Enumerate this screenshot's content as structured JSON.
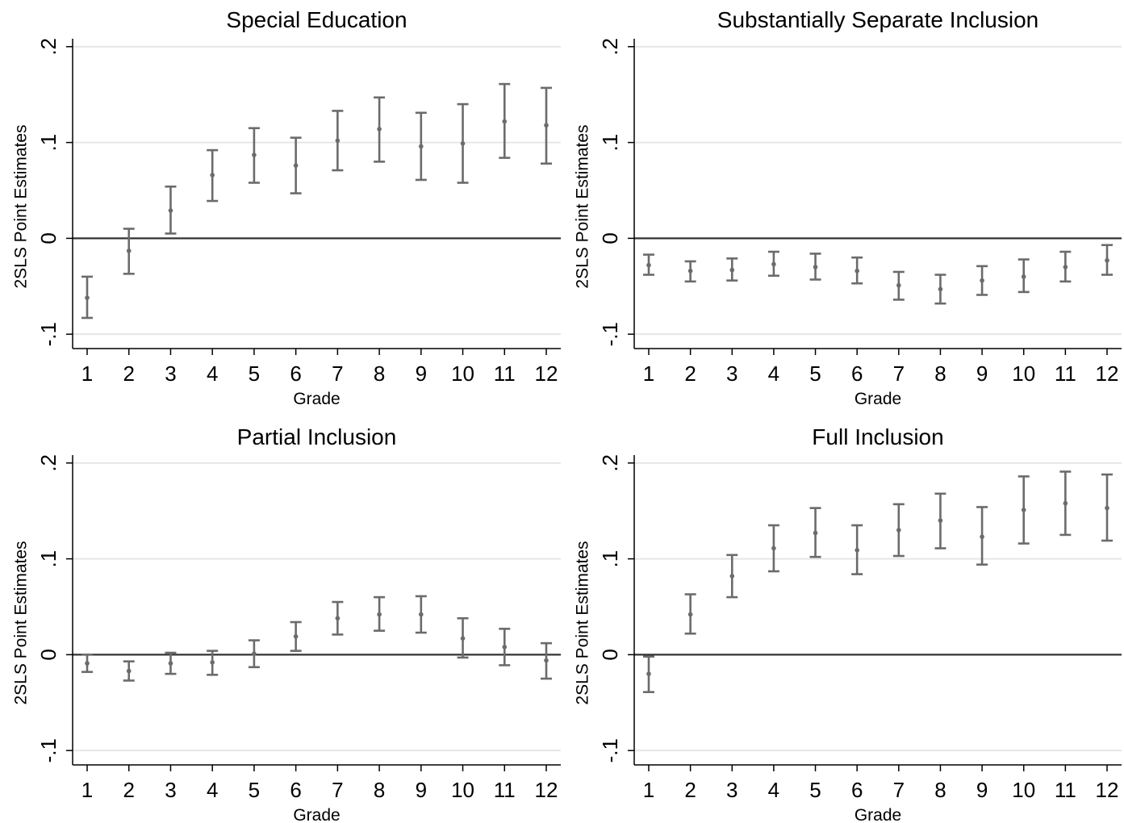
{
  "chart_data": [
    {
      "type": "errorbar",
      "title": "Special Education",
      "xlabel": "Grade",
      "ylabel": "2SLS Point Estimates",
      "ylim": [
        -0.115,
        0.215
      ],
      "yticks": [
        -0.1,
        0,
        0.1,
        0.2
      ],
      "ytick_labels": [
        "-.1",
        "0",
        ".1",
        ".2"
      ],
      "grid": true,
      "categories": [
        "1",
        "2",
        "3",
        "4",
        "5",
        "6",
        "7",
        "8",
        "9",
        "10",
        "11",
        "12"
      ],
      "values": [
        -0.062,
        -0.013,
        0.029,
        0.066,
        0.087,
        0.076,
        0.102,
        0.114,
        0.096,
        0.099,
        0.122,
        0.118
      ],
      "lower": [
        -0.083,
        -0.037,
        0.005,
        0.039,
        0.058,
        0.047,
        0.071,
        0.08,
        0.061,
        0.058,
        0.084,
        0.078
      ],
      "upper": [
        -0.04,
        0.01,
        0.054,
        0.092,
        0.115,
        0.105,
        0.133,
        0.147,
        0.131,
        0.14,
        0.161,
        0.157
      ]
    },
    {
      "type": "errorbar",
      "title": "Substantially Separate Inclusion",
      "xlabel": "Grade",
      "ylabel": "2SLS Point Estimates",
      "ylim": [
        -0.115,
        0.215
      ],
      "yticks": [
        -0.1,
        0,
        0.1,
        0.2
      ],
      "ytick_labels": [
        "-.1",
        "0",
        ".1",
        ".2"
      ],
      "grid": true,
      "categories": [
        "1",
        "2",
        "3",
        "4",
        "5",
        "6",
        "7",
        "8",
        "9",
        "10",
        "11",
        "12"
      ],
      "values": [
        -0.028,
        -0.034,
        -0.033,
        -0.027,
        -0.03,
        -0.034,
        -0.049,
        -0.053,
        -0.044,
        -0.04,
        -0.03,
        -0.023
      ],
      "lower": [
        -0.038,
        -0.045,
        -0.044,
        -0.039,
        -0.043,
        -0.047,
        -0.064,
        -0.068,
        -0.059,
        -0.056,
        -0.045,
        -0.038
      ],
      "upper": [
        -0.017,
        -0.024,
        -0.021,
        -0.014,
        -0.016,
        -0.02,
        -0.035,
        -0.038,
        -0.029,
        -0.022,
        -0.014,
        -0.007
      ]
    },
    {
      "type": "errorbar",
      "title": "Partial Inclusion",
      "xlabel": "Grade",
      "ylabel": "2SLS Point Estimates",
      "ylim": [
        -0.115,
        0.215
      ],
      "yticks": [
        -0.1,
        0,
        0.1,
        0.2
      ],
      "ytick_labels": [
        "-.1",
        "0",
        ".1",
        ".2"
      ],
      "grid": true,
      "categories": [
        "1",
        "2",
        "3",
        "4",
        "5",
        "6",
        "7",
        "8",
        "9",
        "10",
        "11",
        "12"
      ],
      "values": [
        -0.009,
        -0.017,
        -0.009,
        -0.008,
        0.001,
        0.019,
        0.038,
        0.042,
        0.042,
        0.017,
        0.008,
        -0.006
      ],
      "lower": [
        -0.018,
        -0.027,
        -0.02,
        -0.021,
        -0.013,
        0.004,
        0.021,
        0.025,
        0.023,
        -0.003,
        -0.011,
        -0.025
      ],
      "upper": [
        0.0,
        -0.007,
        0.002,
        0.004,
        0.015,
        0.034,
        0.055,
        0.06,
        0.061,
        0.038,
        0.027,
        0.012
      ]
    },
    {
      "type": "errorbar",
      "title": "Full Inclusion",
      "xlabel": "Grade",
      "ylabel": "2SLS Point Estimates",
      "ylim": [
        -0.115,
        0.215
      ],
      "yticks": [
        -0.1,
        0,
        0.1,
        0.2
      ],
      "ytick_labels": [
        "-.1",
        "0",
        ".1",
        ".2"
      ],
      "grid": true,
      "categories": [
        "1",
        "2",
        "3",
        "4",
        "5",
        "6",
        "7",
        "8",
        "9",
        "10",
        "11",
        "12"
      ],
      "values": [
        -0.02,
        0.042,
        0.082,
        0.111,
        0.127,
        0.109,
        0.13,
        0.14,
        0.123,
        0.151,
        0.158,
        0.153
      ],
      "lower": [
        -0.039,
        0.022,
        0.06,
        0.087,
        0.102,
        0.084,
        0.103,
        0.111,
        0.094,
        0.116,
        0.125,
        0.119
      ],
      "upper": [
        -0.002,
        0.063,
        0.104,
        0.135,
        0.153,
        0.135,
        0.157,
        0.168,
        0.154,
        0.186,
        0.191,
        0.188
      ]
    }
  ],
  "colors": {
    "marker": "#6b6b6b",
    "errorbar": "#6b6b6b",
    "zero_line": "#333333",
    "grid": "#e6e6e6",
    "axis": "#000000"
  }
}
